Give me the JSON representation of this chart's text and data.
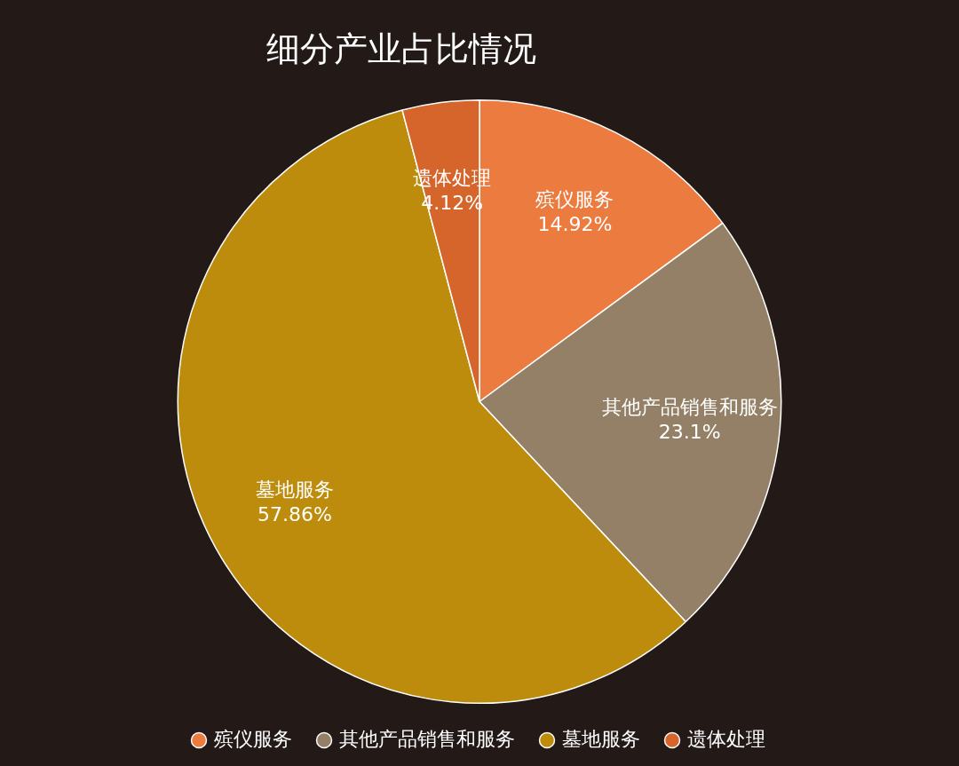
{
  "chart_data": {
    "type": "pie",
    "title": "细分产业占比情况",
    "categories": [
      "殡仪服务",
      "其他产品销售和服务",
      "墓地服务",
      "遗体处理"
    ],
    "values": [
      14.92,
      23.1,
      57.86,
      4.12
    ],
    "value_labels": [
      "14.92%",
      "23.1%",
      "57.86%",
      "4.12%"
    ],
    "colors": [
      "#ec7b40",
      "#948066",
      "#bd8c0c",
      "#d5652b"
    ],
    "legend": "bottom"
  }
}
